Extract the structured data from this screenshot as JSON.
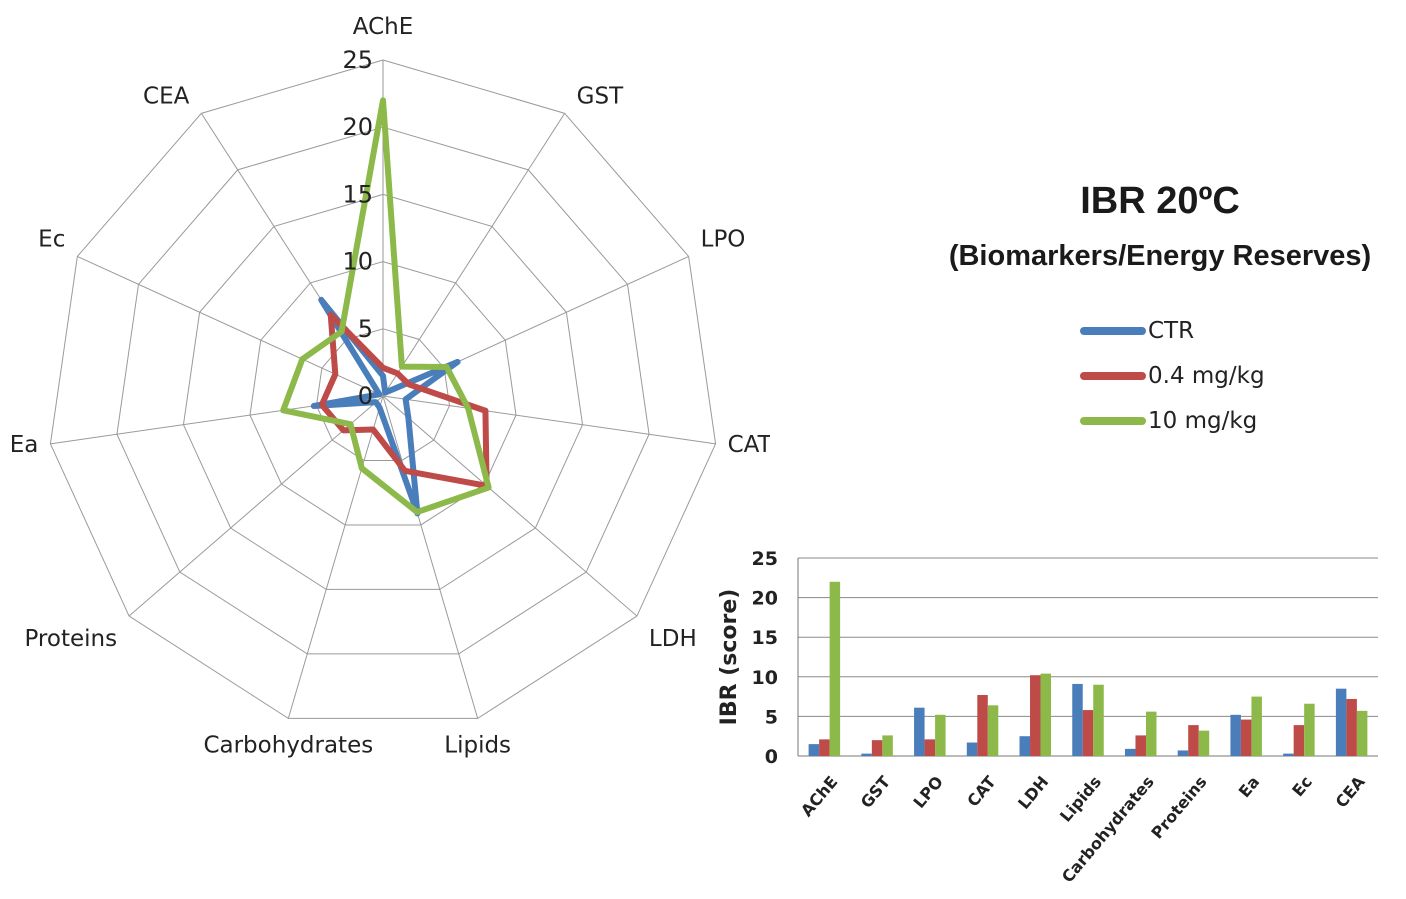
{
  "title": "IBR  20ºC",
  "subtitle": "(Biomarkers/Energy Reserves)",
  "legend": [
    "CTR",
    "0.4 mg/kg",
    "10 mg/kg"
  ],
  "chart_data": [
    {
      "type": "radar",
      "categories": [
        "AChE",
        "GST",
        "LPO",
        "CAT",
        "LDH",
        "Lipids",
        "Carbohydrates",
        "Proteins",
        "Ea",
        "Ec",
        "CEA"
      ],
      "axis_ticks": [
        "0",
        "5",
        "10",
        "15",
        "20",
        "25"
      ],
      "rlim": [
        0,
        25
      ],
      "series": [
        {
          "name": "CTR",
          "color": "#4a7ebb",
          "values": [
            1.5,
            0.3,
            6.1,
            1.7,
            2.5,
            9.1,
            0.9,
            0.7,
            5.2,
            0.3,
            8.5
          ]
        },
        {
          "name": "0.4 mg/kg",
          "color": "#be4b48",
          "values": [
            2.1,
            2.0,
            2.1,
            7.7,
            10.2,
            5.8,
            2.6,
            3.9,
            4.6,
            3.9,
            7.2
          ]
        },
        {
          "name": "10 mg/kg",
          "color": "#8cb94a",
          "values": [
            22.0,
            2.6,
            5.2,
            6.4,
            10.4,
            9.0,
            5.6,
            3.2,
            7.5,
            6.6,
            5.7
          ]
        }
      ]
    },
    {
      "type": "bar",
      "categories": [
        "AChE",
        "GST",
        "LPO",
        "CAT",
        "LDH",
        "Lipids",
        "Carbohydrates",
        "Proteins",
        "Ea",
        "Ec",
        "CEA"
      ],
      "ylabel": "IBR (score)",
      "ylim": [
        0,
        25
      ],
      "yticks": [
        "0",
        "5",
        "10",
        "15",
        "20",
        "25"
      ],
      "grid": true,
      "series": [
        {
          "name": "CTR",
          "color": "#4a7ebb",
          "values": [
            1.5,
            0.3,
            6.1,
            1.7,
            2.5,
            9.1,
            0.9,
            0.7,
            5.2,
            0.3,
            8.5
          ]
        },
        {
          "name": "0.4 mg/kg",
          "color": "#be4b48",
          "values": [
            2.1,
            2.0,
            2.1,
            7.7,
            10.2,
            5.8,
            2.6,
            3.9,
            4.6,
            3.9,
            7.2
          ]
        },
        {
          "name": "10 mg/kg",
          "color": "#8cb94a",
          "values": [
            22.0,
            2.6,
            5.2,
            6.4,
            10.4,
            9.0,
            5.6,
            3.2,
            7.5,
            6.6,
            5.7
          ]
        }
      ]
    }
  ]
}
